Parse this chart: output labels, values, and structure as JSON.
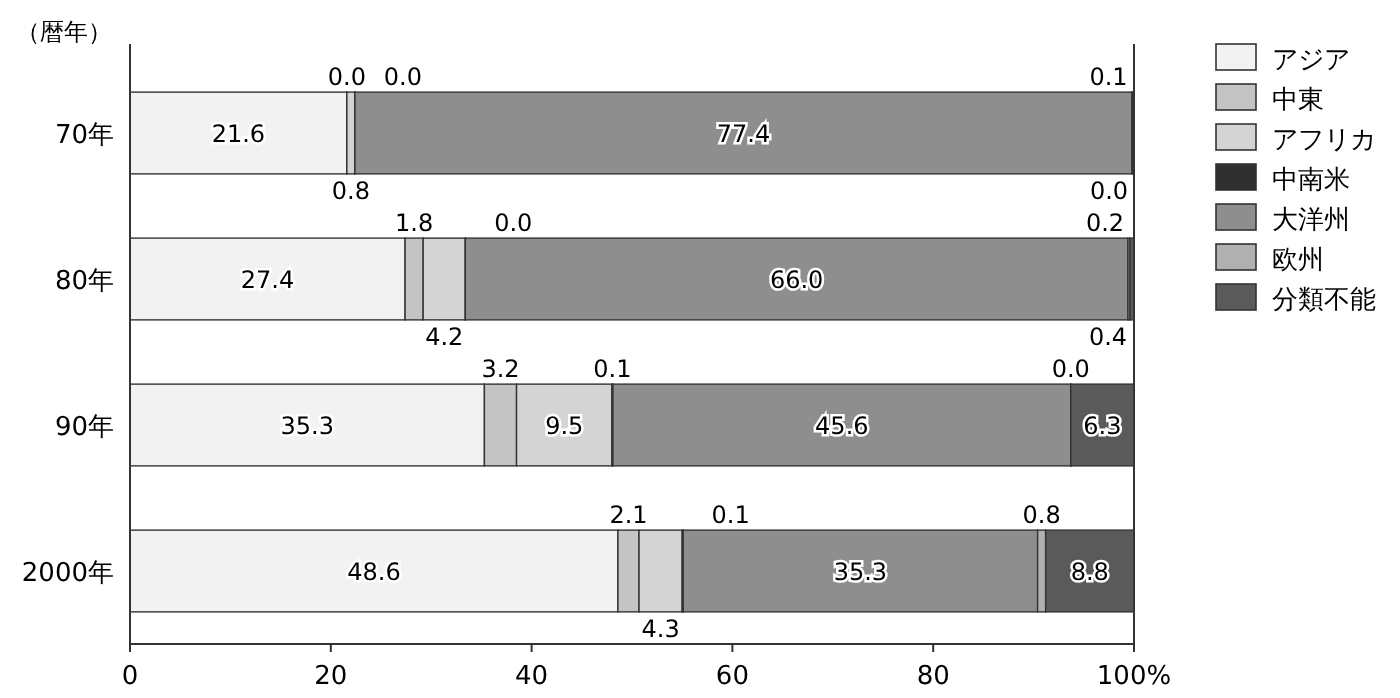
{
  "chart_data": {
    "type": "bar",
    "orientation": "horizontal",
    "stacked": true,
    "ylabel": "（暦年）",
    "categories": [
      "70年",
      "80年",
      "90年",
      "2000年"
    ],
    "series": [
      {
        "name": "アジア",
        "color": "#f2f2f2",
        "values": [
          21.6,
          27.4,
          35.3,
          48.6
        ],
        "value_labels": [
          "21.6",
          "27.4",
          "35.3",
          "48.6"
        ]
      },
      {
        "name": "中東",
        "color": "#c4c4c4",
        "values": [
          0.0,
          1.8,
          3.2,
          2.1
        ],
        "value_labels": [
          "0.0",
          "1.8",
          "3.2",
          "2.1"
        ]
      },
      {
        "name": "アフリカ",
        "color": "#d4d4d4",
        "values": [
          0.8,
          4.2,
          9.5,
          4.3
        ],
        "value_labels": [
          "0.8",
          "4.2",
          "9.5",
          "4.3"
        ]
      },
      {
        "name": "中南米",
        "color": "#303030",
        "values": [
          0.0,
          0.0,
          0.1,
          0.1
        ],
        "value_labels": [
          "0.0",
          "0.0",
          "0.1",
          "0.1"
        ]
      },
      {
        "name": "大洋州",
        "color": "#8e8e8e",
        "values": [
          77.4,
          66.0,
          45.6,
          35.3
        ],
        "value_labels": [
          "77.4",
          "66.0",
          "45.6",
          "35.3"
        ]
      },
      {
        "name": "欧州",
        "color": "#b0b0b0",
        "values": [
          0.1,
          0.2,
          0.0,
          0.8
        ],
        "value_labels": [
          "0.1",
          "0.2",
          "0.0",
          "0.8"
        ]
      },
      {
        "name": "分類不能",
        "color": "#5a5a5a",
        "values": [
          0.0,
          0.4,
          6.3,
          8.8
        ],
        "value_labels": [
          "0.0",
          "0.4",
          "6.3",
          "8.8"
        ]
      }
    ],
    "xlim": [
      0,
      100
    ],
    "xticks": [
      0,
      20,
      40,
      60,
      80,
      {
        "value": 100,
        "label": "100%"
      }
    ],
    "legend": "right"
  }
}
